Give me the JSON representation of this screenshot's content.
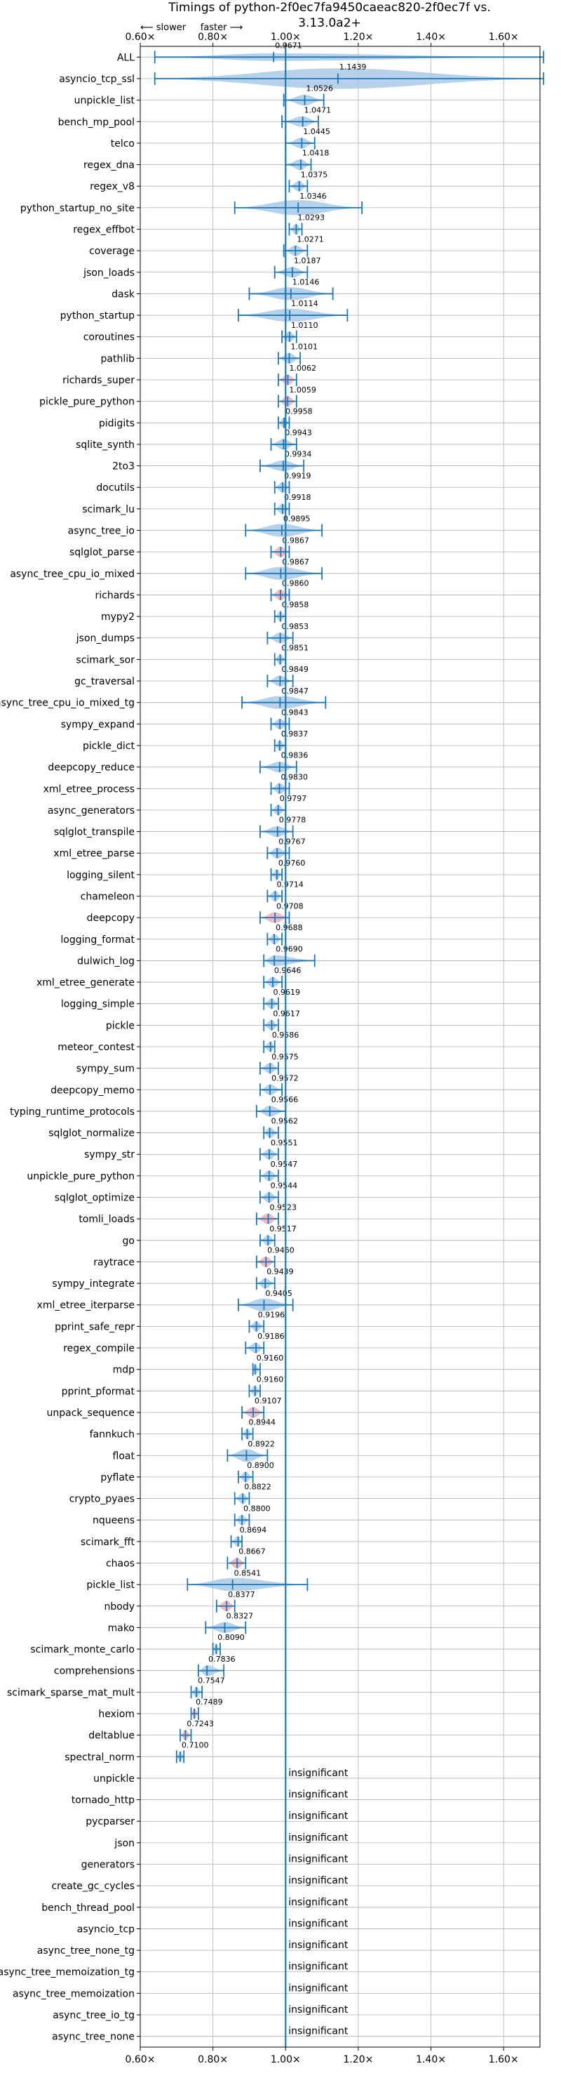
{
  "chart_data": {
    "type": "violin",
    "title": "Timings of python-2f0ec7fa9450caeac820-2f0ec7f vs. 3.13.0a2+",
    "subtitle": "⟵ slower     faster ⟶",
    "xlim": [
      0.6,
      1.7
    ],
    "x_ticks": [
      0.6,
      0.8,
      1.0,
      1.2,
      1.4,
      1.6
    ],
    "x_tick_labels": [
      "0.60×",
      "0.80×",
      "1.00×",
      "1.20×",
      "1.40×",
      "1.60×"
    ],
    "reference_line": 1.0,
    "grid": true,
    "insignificant_label": "insignificant",
    "benchmarks": [
      {
        "name": "ALL",
        "value": "0.9671",
        "v": 0.9671,
        "lo": 0.64,
        "hi": 1.71,
        "w": 0.35
      },
      {
        "name": "asyncio_tcp_ssl",
        "value": "1.1439",
        "v": 1.1439,
        "lo": 0.64,
        "hi": 1.71,
        "w": 0.95
      },
      {
        "name": "unpickle_list",
        "value": "1.0526",
        "v": 1.0526,
        "lo": 0.995,
        "hi": 1.105,
        "w": 0.5
      },
      {
        "name": "bench_mp_pool",
        "value": "1.0471",
        "v": 1.0471,
        "lo": 0.99,
        "hi": 1.09,
        "w": 0.5
      },
      {
        "name": "telco",
        "value": "1.0445",
        "v": 1.0445,
        "lo": 1.0,
        "hi": 1.08,
        "w": 0.5
      },
      {
        "name": "regex_dna",
        "value": "1.0418",
        "v": 1.0418,
        "lo": 1.0,
        "hi": 1.07,
        "w": 0.5
      },
      {
        "name": "regex_v8",
        "value": "1.0375",
        "v": 1.0375,
        "lo": 1.01,
        "hi": 1.06,
        "w": 0.5
      },
      {
        "name": "python_startup_no_site",
        "value": "1.0346",
        "v": 1.0346,
        "lo": 0.86,
        "hi": 1.21,
        "w": 0.7
      },
      {
        "name": "regex_effbot",
        "value": "1.0293",
        "v": 1.0293,
        "lo": 1.01,
        "hi": 1.045,
        "w": 0.5
      },
      {
        "name": "coverage",
        "value": "1.0271",
        "v": 1.0271,
        "lo": 0.995,
        "hi": 1.06,
        "w": 0.5
      },
      {
        "name": "json_loads",
        "value": "1.0187",
        "v": 1.0187,
        "lo": 0.97,
        "hi": 1.06,
        "w": 0.5
      },
      {
        "name": "dask",
        "value": "1.0146",
        "v": 1.0146,
        "lo": 0.9,
        "hi": 1.13,
        "w": 0.6
      },
      {
        "name": "python_startup",
        "value": "1.0114",
        "v": 1.0114,
        "lo": 0.87,
        "hi": 1.17,
        "w": 0.6
      },
      {
        "name": "coroutines",
        "value": "1.0110",
        "v": 1.011,
        "lo": 0.99,
        "hi": 1.03,
        "w": 0.5
      },
      {
        "name": "pathlib",
        "value": "1.0101",
        "v": 1.0101,
        "lo": 0.98,
        "hi": 1.04,
        "w": 0.5
      },
      {
        "name": "richards_super",
        "value": "1.0062",
        "v": 1.0062,
        "lo": 0.98,
        "hi": 1.03,
        "w": 0.5
      },
      {
        "name": "pickle_pure_python",
        "value": "1.0059",
        "v": 1.0059,
        "lo": 0.98,
        "hi": 1.03,
        "w": 0.5
      },
      {
        "name": "pidigits",
        "value": "0.9958",
        "v": 0.9958,
        "lo": 0.98,
        "hi": 1.01,
        "w": 0.5
      },
      {
        "name": "sqlite_synth",
        "value": "0.9943",
        "v": 0.9943,
        "lo": 0.96,
        "hi": 1.03,
        "w": 0.5
      },
      {
        "name": "2to3",
        "value": "0.9934",
        "v": 0.9934,
        "lo": 0.93,
        "hi": 1.05,
        "w": 0.5
      },
      {
        "name": "docutils",
        "value": "0.9919",
        "v": 0.9919,
        "lo": 0.97,
        "hi": 1.01,
        "w": 0.5
      },
      {
        "name": "scimark_lu",
        "value": "0.9918",
        "v": 0.9918,
        "lo": 0.97,
        "hi": 1.01,
        "w": 0.5
      },
      {
        "name": "async_tree_io",
        "value": "0.9895",
        "v": 0.9895,
        "lo": 0.89,
        "hi": 1.1,
        "w": 0.6
      },
      {
        "name": "sqlglot_parse",
        "value": "0.9867",
        "v": 0.9867,
        "lo": 0.96,
        "hi": 1.01,
        "w": 0.5
      },
      {
        "name": "async_tree_cpu_io_mixed",
        "value": "0.9867",
        "v": 0.9867,
        "lo": 0.89,
        "hi": 1.1,
        "w": 0.6
      },
      {
        "name": "richards",
        "value": "0.9860",
        "v": 0.986,
        "lo": 0.96,
        "hi": 1.01,
        "w": 0.5
      },
      {
        "name": "mypy2",
        "value": "0.9858",
        "v": 0.9858,
        "lo": 0.97,
        "hi": 1.0,
        "w": 0.5
      },
      {
        "name": "json_dumps",
        "value": "0.9853",
        "v": 0.9853,
        "lo": 0.95,
        "hi": 1.02,
        "w": 0.5
      },
      {
        "name": "scimark_sor",
        "value": "0.9851",
        "v": 0.9851,
        "lo": 0.97,
        "hi": 1.0,
        "w": 0.5
      },
      {
        "name": "gc_traversal",
        "value": "0.9849",
        "v": 0.9849,
        "lo": 0.95,
        "hi": 1.02,
        "w": 0.5
      },
      {
        "name": "async_tree_cpu_io_mixed_tg",
        "value": "0.9847",
        "v": 0.9847,
        "lo": 0.88,
        "hi": 1.11,
        "w": 0.6
      },
      {
        "name": "sympy_expand",
        "value": "0.9843",
        "v": 0.9843,
        "lo": 0.96,
        "hi": 1.01,
        "w": 0.5
      },
      {
        "name": "pickle_dict",
        "value": "0.9837",
        "v": 0.9837,
        "lo": 0.97,
        "hi": 1.0,
        "w": 0.5
      },
      {
        "name": "deepcopy_reduce",
        "value": "0.9836",
        "v": 0.9836,
        "lo": 0.93,
        "hi": 1.03,
        "w": 0.5
      },
      {
        "name": "xml_etree_process",
        "value": "0.9830",
        "v": 0.983,
        "lo": 0.96,
        "hi": 1.01,
        "w": 0.5
      },
      {
        "name": "async_generators",
        "value": "0.9797",
        "v": 0.9797,
        "lo": 0.96,
        "hi": 1.0,
        "w": 0.5
      },
      {
        "name": "sqlglot_transpile",
        "value": "0.9778",
        "v": 0.9778,
        "lo": 0.93,
        "hi": 1.02,
        "w": 0.5
      },
      {
        "name": "xml_etree_parse",
        "value": "0.9767",
        "v": 0.9767,
        "lo": 0.95,
        "hi": 1.01,
        "w": 0.5
      },
      {
        "name": "logging_silent",
        "value": "0.9760",
        "v": 0.976,
        "lo": 0.96,
        "hi": 0.99,
        "w": 0.5
      },
      {
        "name": "chameleon",
        "value": "0.9714",
        "v": 0.9714,
        "lo": 0.95,
        "hi": 0.99,
        "w": 0.5
      },
      {
        "name": "deepcopy",
        "value": "0.9708",
        "v": 0.9708,
        "lo": 0.93,
        "hi": 1.01,
        "w": 0.5
      },
      {
        "name": "logging_format",
        "value": "0.9688",
        "v": 0.9688,
        "lo": 0.95,
        "hi": 0.99,
        "w": 0.5
      },
      {
        "name": "dulwich_log",
        "value": "0.9690",
        "v": 0.969,
        "lo": 0.94,
        "hi": 1.08,
        "w": 0.5
      },
      {
        "name": "xml_etree_generate",
        "value": "0.9646",
        "v": 0.9646,
        "lo": 0.94,
        "hi": 0.99,
        "w": 0.5
      },
      {
        "name": "logging_simple",
        "value": "0.9619",
        "v": 0.9619,
        "lo": 0.94,
        "hi": 0.98,
        "w": 0.5
      },
      {
        "name": "pickle",
        "value": "0.9617",
        "v": 0.9617,
        "lo": 0.94,
        "hi": 0.98,
        "w": 0.5
      },
      {
        "name": "meteor_contest",
        "value": "0.9586",
        "v": 0.9586,
        "lo": 0.94,
        "hi": 0.97,
        "w": 0.5
      },
      {
        "name": "sympy_sum",
        "value": "0.9575",
        "v": 0.9575,
        "lo": 0.93,
        "hi": 0.98,
        "w": 0.5
      },
      {
        "name": "deepcopy_memo",
        "value": "0.9572",
        "v": 0.9572,
        "lo": 0.93,
        "hi": 0.99,
        "w": 0.5
      },
      {
        "name": "typing_runtime_protocols",
        "value": "0.9566",
        "v": 0.9566,
        "lo": 0.92,
        "hi": 1.0,
        "w": 0.5
      },
      {
        "name": "sqlglot_normalize",
        "value": "0.9562",
        "v": 0.9562,
        "lo": 0.94,
        "hi": 0.98,
        "w": 0.5
      },
      {
        "name": "sympy_str",
        "value": "0.9551",
        "v": 0.9551,
        "lo": 0.93,
        "hi": 0.98,
        "w": 0.5
      },
      {
        "name": "unpickle_pure_python",
        "value": "0.9547",
        "v": 0.9547,
        "lo": 0.93,
        "hi": 0.98,
        "w": 0.5
      },
      {
        "name": "sqlglot_optimize",
        "value": "0.9544",
        "v": 0.9544,
        "lo": 0.93,
        "hi": 0.98,
        "w": 0.5
      },
      {
        "name": "tomli_loads",
        "value": "0.9523",
        "v": 0.9523,
        "lo": 0.92,
        "hi": 0.98,
        "w": 0.5
      },
      {
        "name": "go",
        "value": "0.9517",
        "v": 0.9517,
        "lo": 0.93,
        "hi": 0.97,
        "w": 0.5
      },
      {
        "name": "raytrace",
        "value": "0.9460",
        "v": 0.946,
        "lo": 0.92,
        "hi": 0.97,
        "w": 0.5
      },
      {
        "name": "sympy_integrate",
        "value": "0.9439",
        "v": 0.9439,
        "lo": 0.92,
        "hi": 0.97,
        "w": 0.5
      },
      {
        "name": "xml_etree_iterparse",
        "value": "0.9405",
        "v": 0.9405,
        "lo": 0.87,
        "hi": 1.02,
        "w": 0.6
      },
      {
        "name": "pprint_safe_repr",
        "value": "0.9196",
        "v": 0.9196,
        "lo": 0.9,
        "hi": 0.94,
        "w": 0.5
      },
      {
        "name": "regex_compile",
        "value": "0.9186",
        "v": 0.9186,
        "lo": 0.89,
        "hi": 0.94,
        "w": 0.5
      },
      {
        "name": "mdp",
        "value": "0.9160",
        "v": 0.916,
        "lo": 0.91,
        "hi": 0.93,
        "w": 0.5
      },
      {
        "name": "pprint_pformat",
        "value": "0.9160",
        "v": 0.916,
        "lo": 0.9,
        "hi": 0.93,
        "w": 0.5
      },
      {
        "name": "unpack_sequence",
        "value": "0.9107",
        "v": 0.9107,
        "lo": 0.88,
        "hi": 0.94,
        "w": 0.5
      },
      {
        "name": "fannkuch",
        "value": "0.8944",
        "v": 0.8944,
        "lo": 0.88,
        "hi": 0.91,
        "w": 0.5
      },
      {
        "name": "float",
        "value": "0.8922",
        "v": 0.8922,
        "lo": 0.84,
        "hi": 0.95,
        "w": 0.6
      },
      {
        "name": "pyflate",
        "value": "0.8900",
        "v": 0.89,
        "lo": 0.87,
        "hi": 0.91,
        "w": 0.5
      },
      {
        "name": "crypto_pyaes",
        "value": "0.8822",
        "v": 0.8822,
        "lo": 0.86,
        "hi": 0.9,
        "w": 0.5
      },
      {
        "name": "nqueens",
        "value": "0.8800",
        "v": 0.88,
        "lo": 0.86,
        "hi": 0.9,
        "w": 0.5
      },
      {
        "name": "scimark_fft",
        "value": "0.8694",
        "v": 0.8694,
        "lo": 0.85,
        "hi": 0.88,
        "w": 0.5
      },
      {
        "name": "chaos",
        "value": "0.8667",
        "v": 0.8667,
        "lo": 0.84,
        "hi": 0.89,
        "w": 0.5
      },
      {
        "name": "pickle_list",
        "value": "0.8541",
        "v": 0.8541,
        "lo": 0.73,
        "hi": 1.06,
        "w": 0.6
      },
      {
        "name": "nbody",
        "value": "0.8377",
        "v": 0.8377,
        "lo": 0.81,
        "hi": 0.86,
        "w": 0.5
      },
      {
        "name": "mako",
        "value": "0.8327",
        "v": 0.8327,
        "lo": 0.78,
        "hi": 0.89,
        "w": 0.5
      },
      {
        "name": "scimark_monte_carlo",
        "value": "0.8090",
        "v": 0.809,
        "lo": 0.8,
        "hi": 0.82,
        "w": 0.5
      },
      {
        "name": "comprehensions",
        "value": "0.7836",
        "v": 0.7836,
        "lo": 0.76,
        "hi": 0.83,
        "w": 0.5
      },
      {
        "name": "scimark_sparse_mat_mult",
        "value": "0.7547",
        "v": 0.7547,
        "lo": 0.74,
        "hi": 0.77,
        "w": 0.5
      },
      {
        "name": "hexiom",
        "value": "0.7489",
        "v": 0.7489,
        "lo": 0.74,
        "hi": 0.76,
        "w": 0.5
      },
      {
        "name": "deltablue",
        "value": "0.7243",
        "v": 0.7243,
        "lo": 0.71,
        "hi": 0.74,
        "w": 0.5
      },
      {
        "name": "spectral_norm",
        "value": "0.7100",
        "v": 0.71,
        "lo": 0.7,
        "hi": 0.72,
        "w": 0.5
      },
      {
        "name": "unpickle",
        "value": null
      },
      {
        "name": "tornado_http",
        "value": null
      },
      {
        "name": "pycparser",
        "value": null
      },
      {
        "name": "json",
        "value": null
      },
      {
        "name": "generators",
        "value": null
      },
      {
        "name": "create_gc_cycles",
        "value": null
      },
      {
        "name": "bench_thread_pool",
        "value": null
      },
      {
        "name": "asyncio_tcp",
        "value": null
      },
      {
        "name": "async_tree_none_tg",
        "value": null
      },
      {
        "name": "async_tree_memoization_tg",
        "value": null
      },
      {
        "name": "async_tree_memoization",
        "value": null
      },
      {
        "name": "async_tree_io_tg",
        "value": null
      },
      {
        "name": "async_tree_none",
        "value": null
      }
    ],
    "highlighted": [
      "richards_super",
      "pickle_pure_python",
      "sqlglot_parse",
      "richards",
      "deepcopy",
      "tomli_loads",
      "raytrace",
      "unpack_sequence",
      "chaos",
      "nbody",
      "hexiom",
      "deltablue"
    ],
    "colors": {
      "violin": "#a9c9e6",
      "violin_highlight": "#f2aeb8",
      "line": "#1f77b4",
      "grid": "#b0b0b0",
      "text": "#000000"
    }
  }
}
